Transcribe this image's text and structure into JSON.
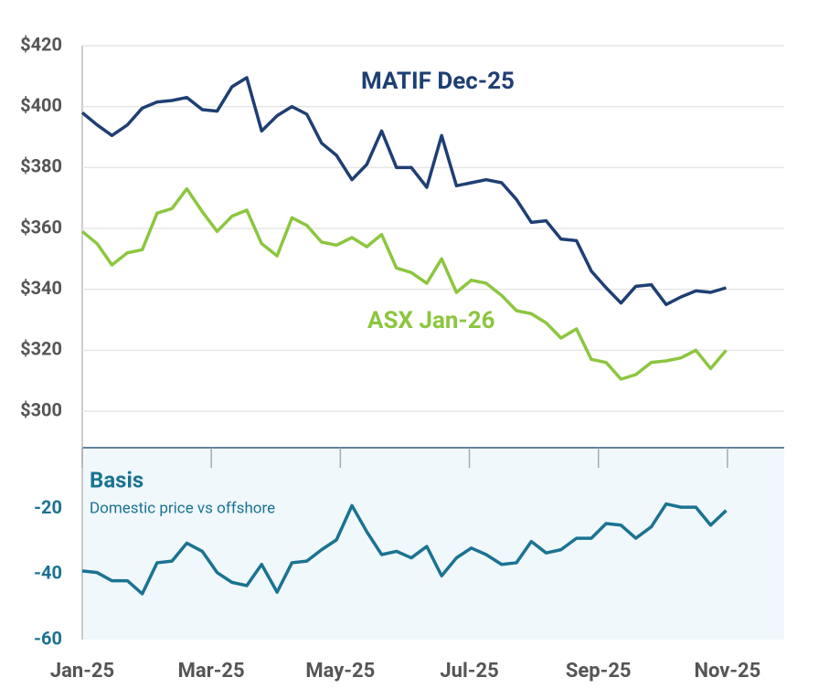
{
  "chart_data": [
    {
      "type": "line",
      "x": [
        0,
        0.23,
        0.46,
        0.7,
        0.93,
        1.16,
        1.39,
        1.62,
        1.86,
        2.09,
        2.32,
        2.55,
        2.78,
        3.02,
        3.25,
        3.48,
        3.71,
        3.94,
        4.18,
        4.41,
        4.64,
        4.87,
        5.1,
        5.34,
        5.57,
        5.8,
        6.03,
        6.26,
        6.5,
        6.73,
        6.96,
        7.19,
        7.42,
        7.66,
        7.89,
        8.12,
        8.35,
        8.58,
        8.82,
        9.05,
        9.28,
        9.51,
        9.74,
        9.98
      ],
      "xlim": [
        0,
        10.88
      ],
      "ylim": [
        288,
        420
      ],
      "yticks": [
        {
          "value": 300,
          "label": "$300"
        },
        {
          "value": 320,
          "label": "$320"
        },
        {
          "value": 340,
          "label": "$340"
        },
        {
          "value": 360,
          "label": "$360"
        },
        {
          "value": 380,
          "label": "$380"
        },
        {
          "value": 400,
          "label": "$400"
        },
        {
          "value": 420,
          "label": "$420"
        }
      ],
      "grid": true,
      "series": [
        {
          "name": "MATIF Dec-25",
          "color": "#1f3f73",
          "values": [
            398,
            394,
            390.5,
            394,
            399.5,
            401.5,
            402,
            403,
            399,
            398.5,
            406.5,
            409.5,
            392,
            397,
            400,
            397.5,
            388,
            384,
            376,
            381,
            392,
            380,
            380,
            373.5,
            390.5,
            374,
            375,
            376,
            375,
            369.5,
            362,
            362.5,
            356.5,
            356,
            346,
            340.5,
            335.5,
            341,
            341.5,
            335,
            337.5,
            339.5,
            339,
            340.5
          ]
        },
        {
          "name": "ASX Jan-26",
          "color": "#8cc63f",
          "values": [
            359,
            355,
            348,
            352,
            353,
            365,
            366.5,
            373,
            365.5,
            359,
            364,
            366,
            355,
            351,
            363.5,
            361,
            355.5,
            354.5,
            357,
            354,
            358,
            347,
            345.5,
            342,
            350,
            339,
            343,
            342,
            338,
            333,
            332,
            329,
            324,
            327,
            317,
            316,
            310.5,
            312,
            316,
            316.5,
            317.5,
            320,
            314,
            320
          ]
        }
      ]
    },
    {
      "type": "line",
      "title": "Basis",
      "subtitle": "Domestic price vs offshore",
      "x": [
        0,
        0.23,
        0.46,
        0.7,
        0.93,
        1.16,
        1.39,
        1.62,
        1.86,
        2.09,
        2.32,
        2.55,
        2.78,
        3.02,
        3.25,
        3.48,
        3.71,
        3.94,
        4.18,
        4.41,
        4.64,
        4.87,
        5.1,
        5.34,
        5.57,
        5.8,
        6.03,
        6.26,
        6.5,
        6.73,
        6.96,
        7.19,
        7.42,
        7.66,
        7.89,
        8.12,
        8.35,
        8.58,
        8.82,
        9.05,
        9.28,
        9.51,
        9.74,
        9.98
      ],
      "xlim": [
        0,
        10.88
      ],
      "xticks": [
        {
          "value": 0,
          "label": "Jan-25"
        },
        {
          "value": 2,
          "label": "Mar-25"
        },
        {
          "value": 4,
          "label": "May-25"
        },
        {
          "value": 6,
          "label": "Jul-25"
        },
        {
          "value": 8,
          "label": "Sep-25"
        },
        {
          "value": 10,
          "label": "Nov-25"
        }
      ],
      "ylim": [
        -60,
        -1.3
      ],
      "yticks": [
        -60,
        -40,
        -20
      ],
      "series": [
        {
          "name": "Basis",
          "color": "#1a7391",
          "values": [
            -39,
            -39.5,
            -42,
            -42,
            -46,
            -36.5,
            -36,
            -30.5,
            -33,
            -39.5,
            -42.5,
            -43.5,
            -37,
            -45.5,
            -36.5,
            -36,
            -32.5,
            -29.5,
            -19,
            -27,
            -34,
            -33,
            -35,
            -31.5,
            -40.5,
            -35,
            -32,
            -34,
            -37,
            -36.5,
            -30,
            -33.5,
            -32.5,
            -29,
            -29,
            -24.5,
            -25,
            -29,
            -25.5,
            -18.5,
            -19.5,
            -19.5,
            -25,
            -20.5
          ]
        }
      ]
    }
  ]
}
